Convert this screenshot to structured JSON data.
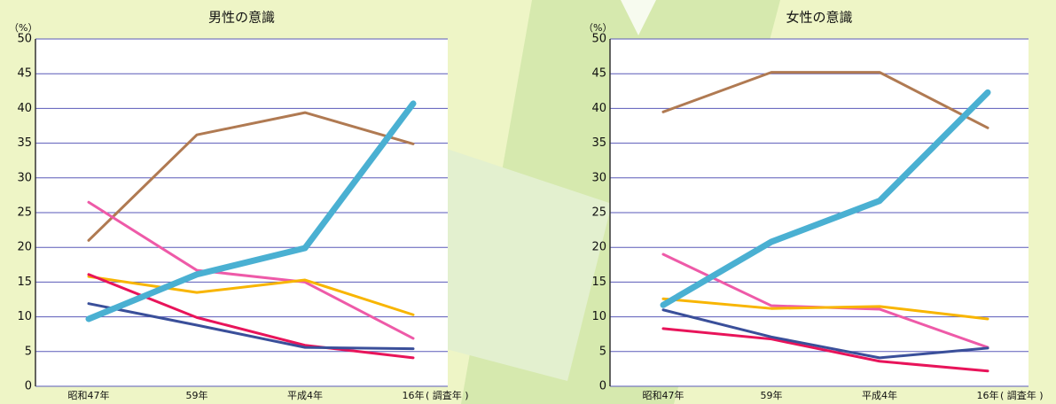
{
  "chart_data": [
    {
      "type": "line",
      "title": "男性の意識",
      "y_label": "（%）",
      "x_label": "( 調査年 )",
      "categories": [
        "昭和47年",
        "59年",
        "平成4年",
        "16年"
      ],
      "ylim": [
        0,
        50
      ],
      "yticks": [
        0,
        5,
        10,
        15,
        20,
        25,
        30,
        35,
        40,
        45,
        50
      ],
      "grid": true,
      "series": [
        {
          "color": "#b07a52",
          "width": 3,
          "values": [
            21.0,
            36.2,
            39.4,
            34.9
          ]
        },
        {
          "color": "#ee5aa8",
          "width": 3,
          "values": [
            26.5,
            16.7,
            15.0,
            6.9
          ]
        },
        {
          "color": "#f8b500",
          "width": 3,
          "values": [
            15.8,
            13.5,
            15.3,
            10.3
          ]
        },
        {
          "color": "#e8145a",
          "width": 3,
          "values": [
            16.1,
            9.9,
            5.9,
            4.1
          ]
        },
        {
          "color": "#3a4f9a",
          "width": 3,
          "values": [
            11.9,
            8.8,
            5.6,
            5.4
          ]
        },
        {
          "color": "#4ab0d2",
          "width": 7,
          "values": [
            9.7,
            16.1,
            19.9,
            40.7
          ]
        }
      ]
    },
    {
      "type": "line",
      "title": "女性の意識",
      "y_label": "（%）",
      "x_label": "( 調査年 )",
      "categories": [
        "昭和47年",
        "59年",
        "平成4年",
        "16年"
      ],
      "ylim": [
        0,
        50
      ],
      "yticks": [
        0,
        5,
        10,
        15,
        20,
        25,
        30,
        35,
        40,
        45,
        50
      ],
      "grid": true,
      "series": [
        {
          "color": "#b07a52",
          "width": 3,
          "values": [
            39.5,
            45.2,
            45.2,
            37.2
          ]
        },
        {
          "color": "#ee5aa8",
          "width": 3,
          "values": [
            19.0,
            11.6,
            11.1,
            5.6
          ]
        },
        {
          "color": "#f8b500",
          "width": 3,
          "values": [
            12.6,
            11.2,
            11.5,
            9.7
          ]
        },
        {
          "color": "#e8145a",
          "width": 3,
          "values": [
            8.3,
            6.8,
            3.6,
            2.2
          ]
        },
        {
          "color": "#3a4f9a",
          "width": 3,
          "values": [
            11.0,
            7.1,
            4.1,
            5.5
          ]
        },
        {
          "color": "#4ab0d2",
          "width": 7,
          "values": [
            11.7,
            20.8,
            26.7,
            42.3
          ]
        }
      ]
    }
  ]
}
